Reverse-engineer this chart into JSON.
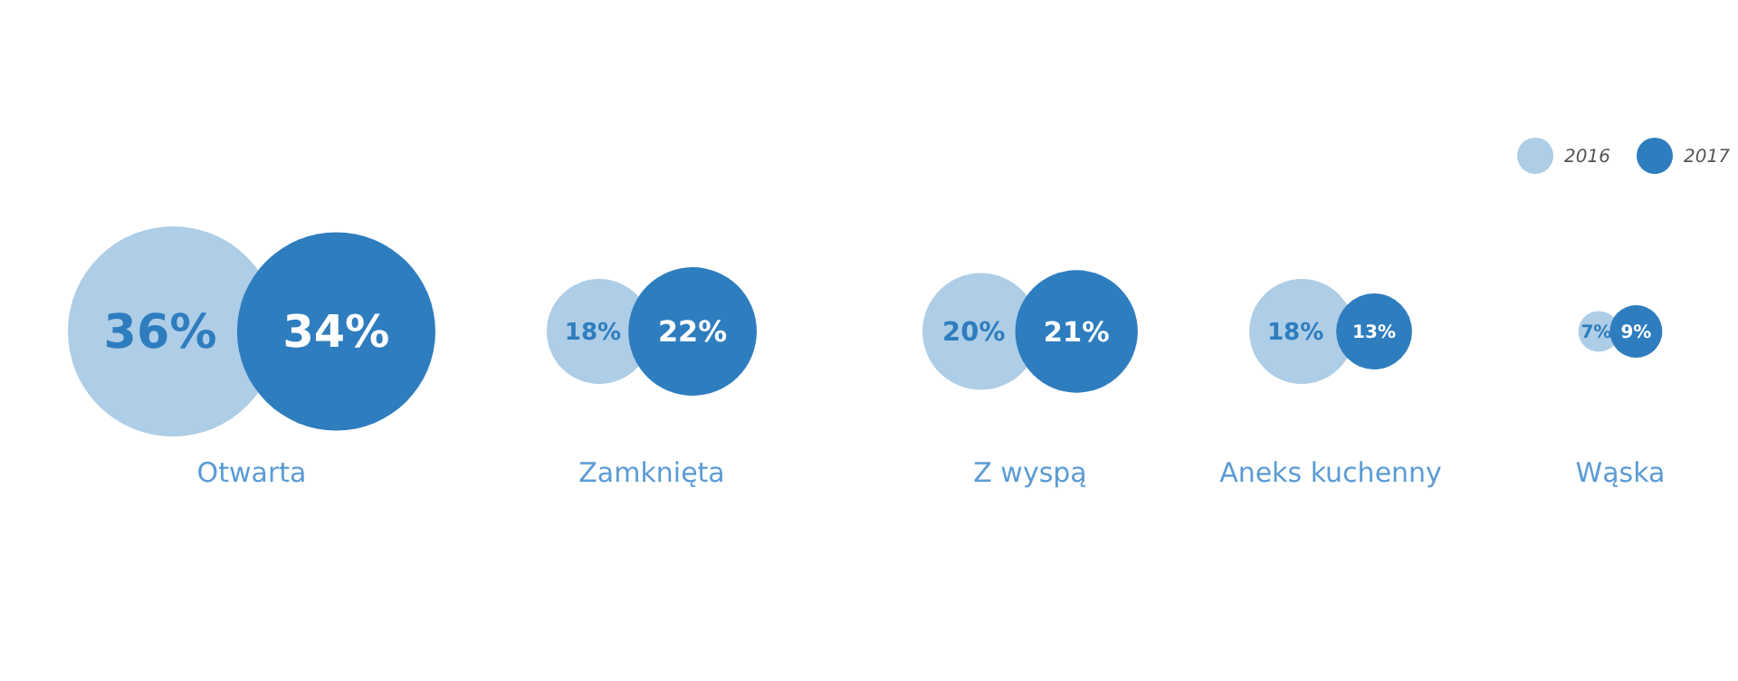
{
  "chart_data": {
    "type": "other",
    "categories": [
      "Otwarta",
      "Zamknięta",
      "Z wyspą",
      "Aneks kuchenny",
      "Wąska"
    ],
    "series": [
      {
        "name": "2016",
        "color": "#aecde6",
        "values": [
          36,
          18,
          20,
          18,
          7
        ],
        "value_labels": [
          "36%",
          "18%",
          "20%",
          "18%",
          "7%"
        ]
      },
      {
        "name": "2017",
        "color": "#2e7dbf",
        "values": [
          34,
          22,
          21,
          13,
          9
        ],
        "value_labels": [
          "34%",
          "22%",
          "21%",
          "13%",
          "9%"
        ]
      }
    ],
    "legend": "top right"
  }
}
